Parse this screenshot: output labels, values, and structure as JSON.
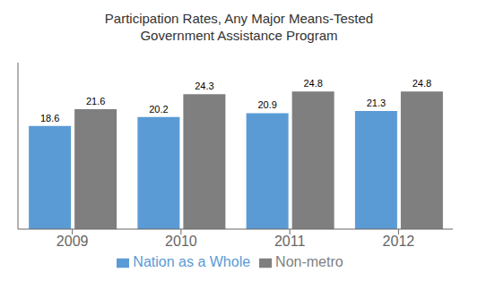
{
  "chart_data": {
    "type": "bar",
    "title": "Participation Rates, Any Major Means-Tested\nGovernment Assistance Program",
    "categories": [
      "2009",
      "2010",
      "2011",
      "2012"
    ],
    "series": [
      {
        "name": "Nation as a Whole",
        "color": "#5B9BD5",
        "values": [
          18.6,
          20.2,
          20.9,
          21.3
        ]
      },
      {
        "name": "Non-metro",
        "color": "#7f7f7f",
        "values": [
          21.6,
          24.3,
          24.8,
          24.8
        ]
      }
    ],
    "ylim": [
      0,
      30
    ],
    "data_labels": true,
    "tick_labels": "x",
    "legend": "bottom",
    "grid": false
  }
}
